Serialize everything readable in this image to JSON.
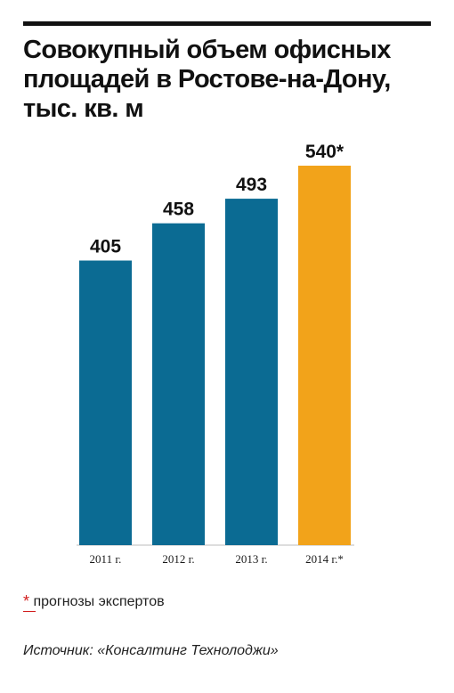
{
  "header": {
    "title_lines": [
      "Совокупный объем офисных",
      "площадей в Ростове-на-Дону,",
      "тыс. кв. м"
    ]
  },
  "footer": {
    "note_star": "*",
    "note_text": "прогнозы экспертов",
    "source": "Источник: «Консалтинг Технолоджи»"
  },
  "colors": {
    "actual": "#0b6b93",
    "forecast": "#f2a31a"
  },
  "chart_data": {
    "type": "bar",
    "title": "Совокупный объем офисных площадей в Ростове-на-Дону, тыс. кв. м",
    "xlabel": "",
    "ylabel": "",
    "categories": [
      "2011 г.",
      "2012 г.",
      "2013 г.",
      "2014 г.*"
    ],
    "values": [
      405,
      458,
      493,
      540
    ],
    "value_labels": [
      "405",
      "458",
      "493",
      "540*"
    ],
    "forecast": [
      false,
      false,
      false,
      true
    ],
    "ylim": [
      0,
      540
    ],
    "grid": false,
    "legend": "none"
  }
}
